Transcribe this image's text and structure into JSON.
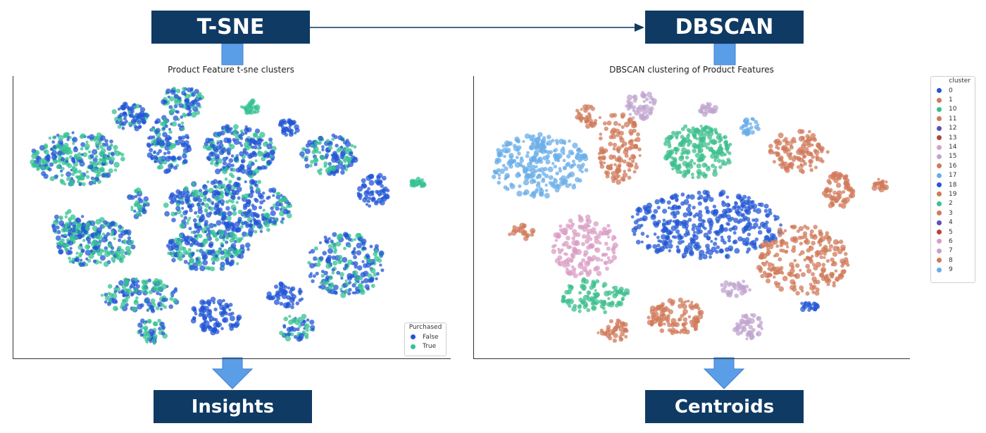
{
  "boxes": {
    "tsne": "T-SNE",
    "dbscan": "DBSCAN",
    "insights": "Insights",
    "centroids": "Centroids"
  },
  "left_plot": {
    "title": "Product Feature t-sne clusters",
    "legend_title": "Purchased",
    "legend_items": [
      {
        "label": "False",
        "color": "#2255d6"
      },
      {
        "label": "True",
        "color": "#34c292"
      }
    ]
  },
  "right_plot": {
    "title": "DBSCAN clustering of Product Features",
    "legend_title": "cluster",
    "legend_items": [
      {
        "label": "0",
        "color": "#2458d4"
      },
      {
        "label": "1",
        "color": "#d0795a"
      },
      {
        "label": "10",
        "color": "#3dbf8e"
      },
      {
        "label": "11",
        "color": "#d0795a"
      },
      {
        "label": "12",
        "color": "#5a4fb8"
      },
      {
        "label": "13",
        "color": "#b0453d"
      },
      {
        "label": "14",
        "color": "#d99ec4"
      },
      {
        "label": "15",
        "color": "#c0a4cf"
      },
      {
        "label": "16",
        "color": "#d0795a"
      },
      {
        "label": "17",
        "color": "#6aaee8"
      },
      {
        "label": "18",
        "color": "#2458d4"
      },
      {
        "label": "19",
        "color": "#d0795a"
      },
      {
        "label": "2",
        "color": "#3dbf8e"
      },
      {
        "label": "3",
        "color": "#d0795a"
      },
      {
        "label": "4",
        "color": "#5a4fb8"
      },
      {
        "label": "5",
        "color": "#b0453d"
      },
      {
        "label": "6",
        "color": "#d99ec4"
      },
      {
        "label": "7",
        "color": "#c0a4cf"
      },
      {
        "label": "8",
        "color": "#d0795a"
      },
      {
        "label": "9",
        "color": "#6aaee8"
      }
    ]
  },
  "colors": {
    "box_bg": "#0f3a63",
    "connector": "#5b9ee8",
    "arrow_line": "#0f3a63"
  }
}
